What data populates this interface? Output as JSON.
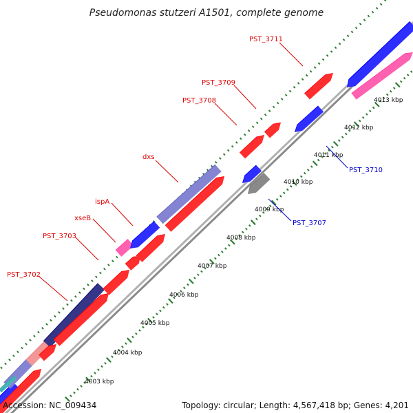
{
  "title": "Pseudomonas stutzeri A1501, complete genome",
  "footer": {
    "accession": "Accession: NC_009434",
    "summary": "Topology: circular; Length: 4,567,418 bp; Genes: 4,201"
  },
  "colors": {
    "forward_cds": "#ff0000",
    "reverse_cds": "#0000ff",
    "navy": "#0a0a6e",
    "pink": "#ff3fa0",
    "grey": "#707070",
    "light_red": "#f08080",
    "teal": "#1aa3a3",
    "slate_blue": "#6a6ac8",
    "backbone": "#999999",
    "tick_major": "#2e7d32",
    "tick_minor": "#2e7d32",
    "label_red": "#dd0000",
    "label_blue": "#0000cc"
  },
  "ticks": [
    {
      "label": "4003 kbp"
    },
    {
      "label": "4004 kbp"
    },
    {
      "label": "4005 kbp"
    },
    {
      "label": "4006 kbp"
    },
    {
      "label": "4007 kbp"
    },
    {
      "label": "4008 kbp"
    },
    {
      "label": "4009 kbp"
    },
    {
      "label": "4010 kbp"
    },
    {
      "label": "4011 kbp"
    },
    {
      "label": "4012 kbp"
    },
    {
      "label": "4013 kbp"
    }
  ],
  "gene_labels": [
    {
      "text": "PST_3702",
      "color": "label_red"
    },
    {
      "text": "PST_3703",
      "color": "label_red"
    },
    {
      "text": "xseB",
      "color": "label_red"
    },
    {
      "text": "ispA",
      "color": "label_red"
    },
    {
      "text": "dxs",
      "color": "label_red"
    },
    {
      "text": "PST_3708",
      "color": "label_red"
    },
    {
      "text": "PST_3709",
      "color": "label_red"
    },
    {
      "text": "PST_3711",
      "color": "label_red"
    },
    {
      "text": "PST_3710",
      "color": "label_blue"
    },
    {
      "text": "PST_3707",
      "color": "label_blue"
    }
  ]
}
